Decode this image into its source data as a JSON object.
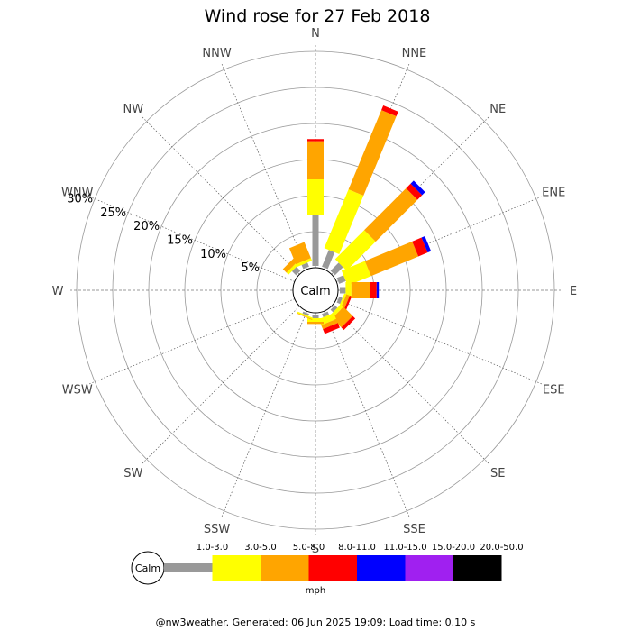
{
  "chart_data": {
    "type": "windrose",
    "title": "Wind rose for 27 Feb 2018",
    "directions": [
      "N",
      "NNE",
      "NE",
      "ENE",
      "E",
      "ESE",
      "SE",
      "SSE",
      "S",
      "SSW",
      "SW",
      "WSW",
      "W",
      "WNW",
      "NW",
      "NNW"
    ],
    "ring_labels": [
      "5%",
      "10%",
      "15%",
      "20%",
      "25%",
      "30%"
    ],
    "ring_values": [
      5,
      10,
      15,
      20,
      25,
      30
    ],
    "calm_label": "Calm",
    "unit": "mph",
    "bins": [
      {
        "label": "1.0-3.0",
        "color": "#999999"
      },
      {
        "label": "3.0-5.0",
        "color": "#ffff00"
      },
      {
        "label": "5.0-8.0",
        "color": "#ffa500"
      },
      {
        "label": "8.0-11.0",
        "color": "#ff0000"
      },
      {
        "label": "11.0-15.0",
        "color": "#0000ff"
      },
      {
        "label": "15.0-20.0",
        "color": "#a020f0"
      },
      {
        "label": "20.0-50.0",
        "color": "#000000"
      }
    ],
    "series": [
      {
        "direction": "N",
        "values": [
          7.0,
          5.0,
          5.3,
          0.3,
          0,
          0,
          0
        ]
      },
      {
        "direction": "NNE",
        "values": [
          2.5,
          8.8,
          11.9,
          0.7,
          0,
          0,
          0
        ]
      },
      {
        "direction": "NE",
        "values": [
          1.6,
          5.7,
          8.2,
          0.9,
          0.6,
          0,
          0
        ]
      },
      {
        "direction": "ENE",
        "values": [
          1.0,
          3.5,
          7.1,
          1.4,
          0.5,
          0,
          0
        ]
      },
      {
        "direction": "E",
        "values": [
          0.8,
          0.8,
          2.6,
          0.9,
          0.3,
          0,
          0
        ]
      },
      {
        "direction": "ESE",
        "values": [
          0.5,
          0.3,
          0.5,
          0.3,
          0,
          0,
          0
        ]
      },
      {
        "direction": "SE",
        "values": [
          0.5,
          0.5,
          1.8,
          0.5,
          0,
          0,
          0
        ]
      },
      {
        "direction": "SSE",
        "values": [
          0.5,
          0.9,
          0.6,
          0.7,
          0,
          0,
          0
        ]
      },
      {
        "direction": "S",
        "values": [
          0.5,
          0.5,
          0.3,
          0,
          0,
          0,
          0
        ]
      },
      {
        "direction": "SSW",
        "values": [
          0.3,
          0.2,
          0.1,
          0,
          0,
          0,
          0
        ]
      },
      {
        "direction": "SW",
        "values": [
          0,
          0,
          0,
          0,
          0,
          0,
          0
        ]
      },
      {
        "direction": "WSW",
        "values": [
          0,
          0,
          0,
          0,
          0,
          0,
          0
        ]
      },
      {
        "direction": "W",
        "values": [
          0,
          0,
          0,
          0,
          0,
          0,
          0
        ]
      },
      {
        "direction": "WNW",
        "values": [
          0,
          0,
          0,
          0,
          0,
          0,
          0
        ]
      },
      {
        "direction": "NW",
        "values": [
          0.8,
          0.4,
          0.7,
          0,
          0,
          0,
          0
        ]
      },
      {
        "direction": "NNW",
        "values": [
          0.6,
          0.4,
          2.4,
          0,
          0,
          0,
          0
        ]
      }
    ]
  },
  "footer": "@nw3weather. Generated: 06 Jun 2025 19:09; Load time: 0.10 s"
}
